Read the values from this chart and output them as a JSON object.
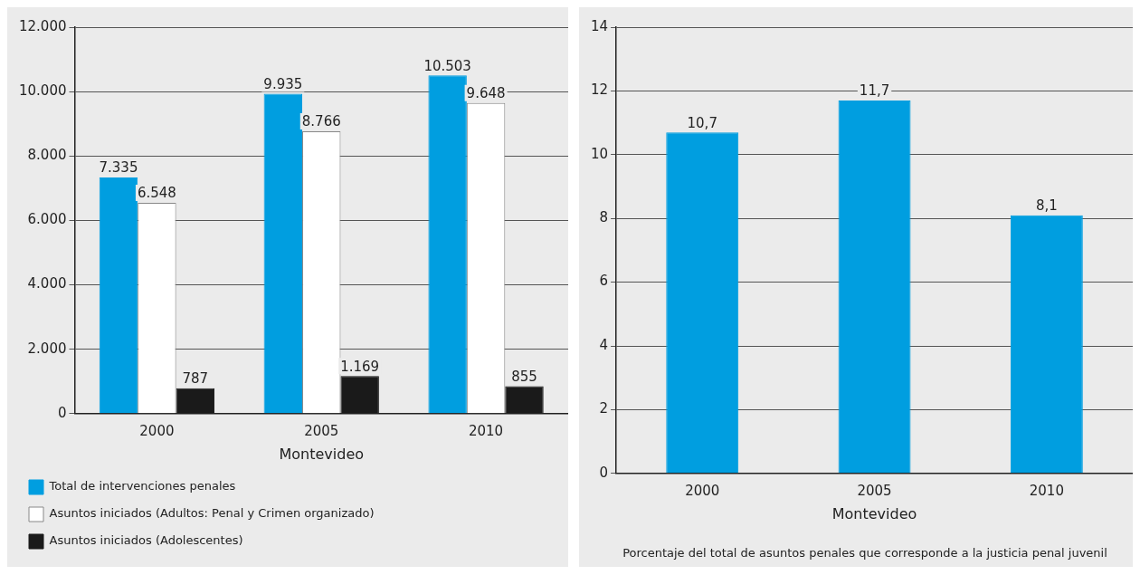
{
  "chart_data": [
    {
      "type": "bar",
      "xlabel": "Montevideo",
      "categories": [
        "2000",
        "2005",
        "2010"
      ],
      "series": [
        {
          "name": "Total de intervenciones penales",
          "color": "#009ee0",
          "values": [
            7335,
            9935,
            10503
          ],
          "value_labels": [
            "7.335",
            "9.935",
            "10.503"
          ]
        },
        {
          "name": "Asuntos iniciados (Adultos: Penal y Crimen organizado)",
          "color": "#ffffff",
          "values": [
            6548,
            8766,
            9648
          ],
          "value_labels": [
            "6.548",
            "8.766",
            "9.648"
          ]
        },
        {
          "name": "Asuntos iniciados (Adolescentes)",
          "color": "#1a1a1a",
          "values": [
            787,
            1169,
            855
          ],
          "value_labels": [
            "787",
            "1.169",
            "855"
          ]
        }
      ],
      "ylim": [
        0,
        12000
      ],
      "yticks": [
        0,
        {
          "value": 2000,
          "label": "2.000"
        },
        {
          "value": 4000,
          "label": "4.000"
        },
        {
          "value": 6000,
          "label": "6.000"
        },
        {
          "value": 8000,
          "label": "8.000"
        },
        {
          "value": 10000,
          "label": "10.000"
        },
        {
          "value": 12000,
          "label": "12.000"
        }
      ],
      "grid": "y",
      "legend": "bottom"
    },
    {
      "type": "bar",
      "xlabel": "Montevideo",
      "categories": [
        "2000",
        "2005",
        "2010"
      ],
      "series": [
        {
          "color": "#009ee0",
          "values": [
            10.7,
            11.7,
            8.1
          ],
          "value_labels": [
            "10,7",
            "11,7",
            "8,1"
          ]
        }
      ],
      "ylim": [
        0,
        14
      ],
      "yticks": [
        0,
        2,
        4,
        6,
        8,
        10,
        12,
        14
      ],
      "grid": "y",
      "legend": false,
      "annotations": [
        "Porcentaje del total de asuntos penales que corresponde a la justicia penal juvenil"
      ]
    }
  ]
}
